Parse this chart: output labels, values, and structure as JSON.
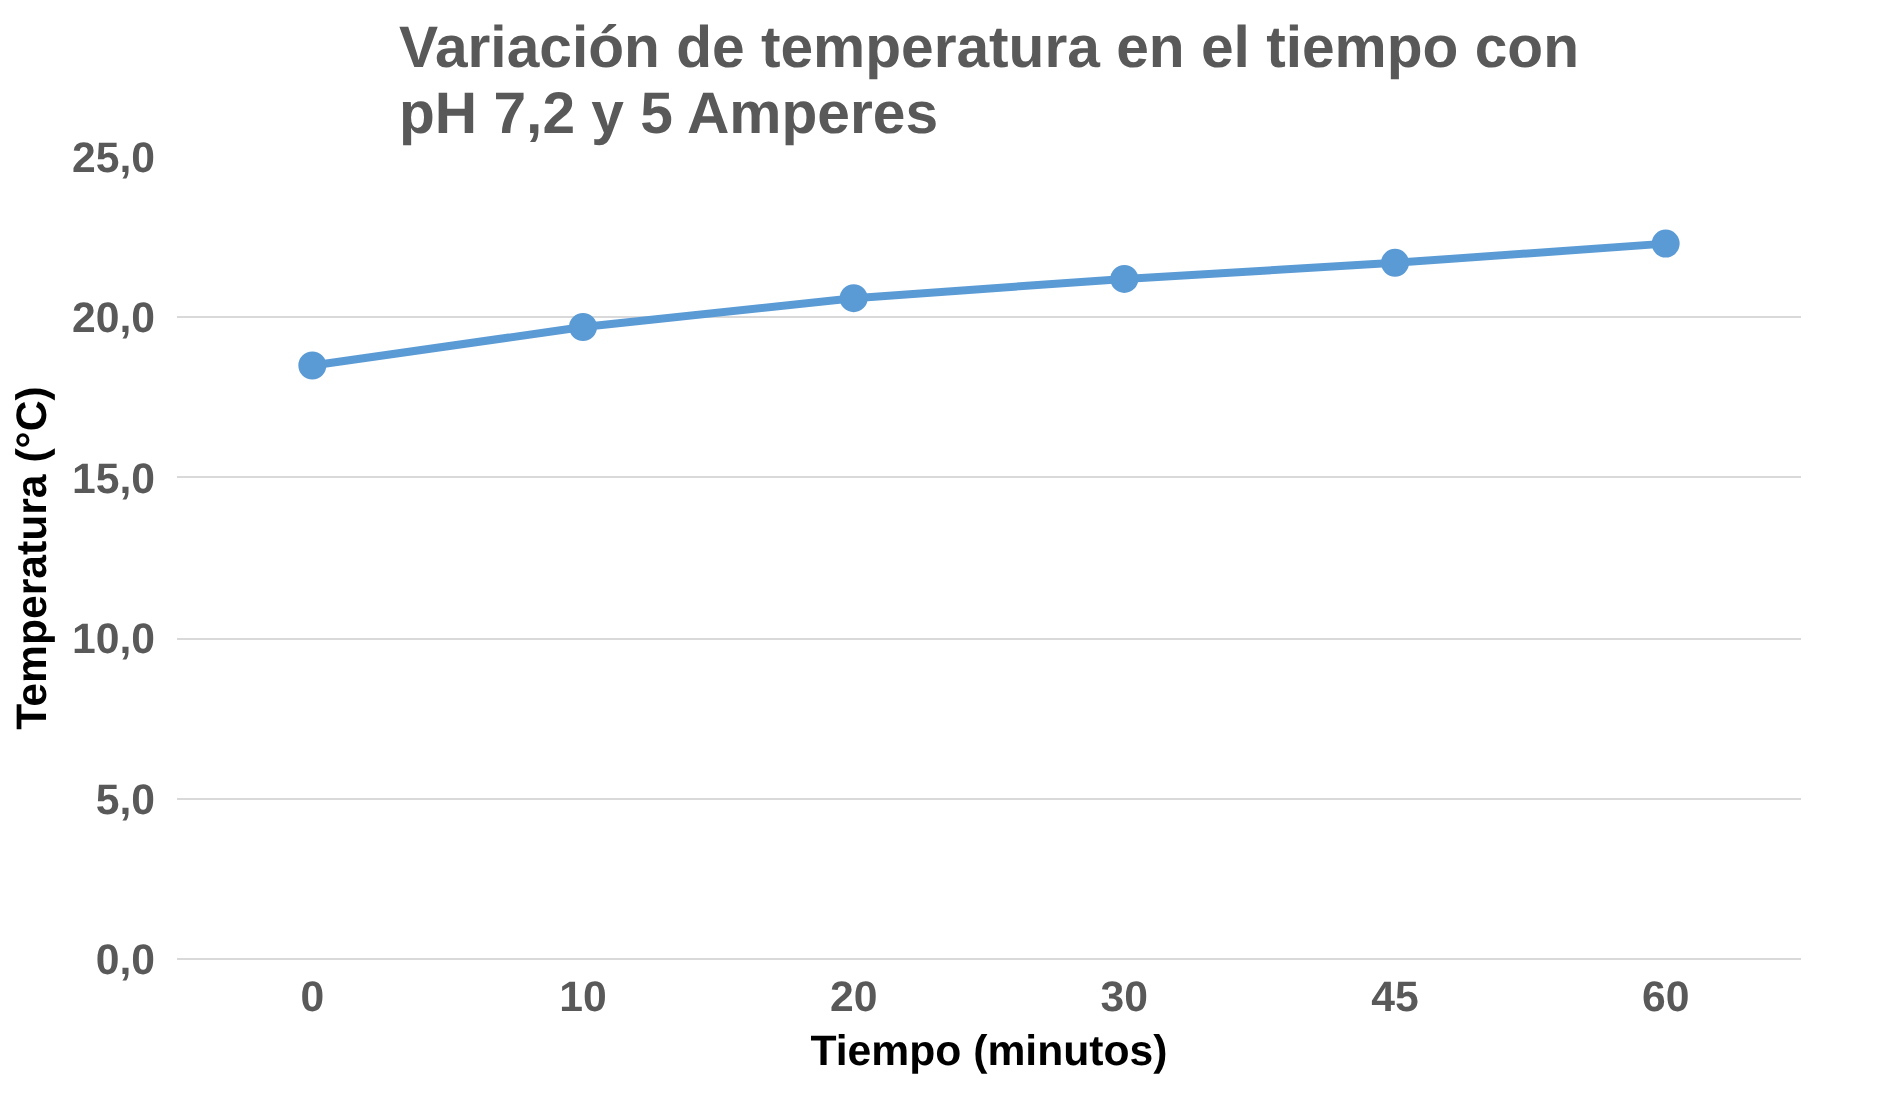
{
  "chart_data": {
    "type": "line",
    "title": "Variación de temperatura en el tiempo con\npH 7,2 y 5 Amperes",
    "xlabel": "Tiempo (minutos)",
    "ylabel": "Temperatura (°C)",
    "categories": [
      "0",
      "10",
      "20",
      "30",
      "45",
      "60"
    ],
    "series": [
      {
        "color": "#5b9bd5",
        "values": [
          18.5,
          19.7,
          20.6,
          21.2,
          21.7,
          22.3
        ]
      }
    ],
    "ylim": [
      0,
      25
    ],
    "yticks": [
      {
        "value": 0,
        "label": "0,0"
      },
      {
        "value": 5,
        "label": "5,0"
      },
      {
        "value": 10,
        "label": "10,0"
      },
      {
        "value": 15,
        "label": "15,0"
      },
      {
        "value": 20,
        "label": "20,0"
      },
      {
        "value": 25,
        "label": "25,0"
      }
    ],
    "grid": "y",
    "marker": "circle",
    "line_style": "solid"
  }
}
